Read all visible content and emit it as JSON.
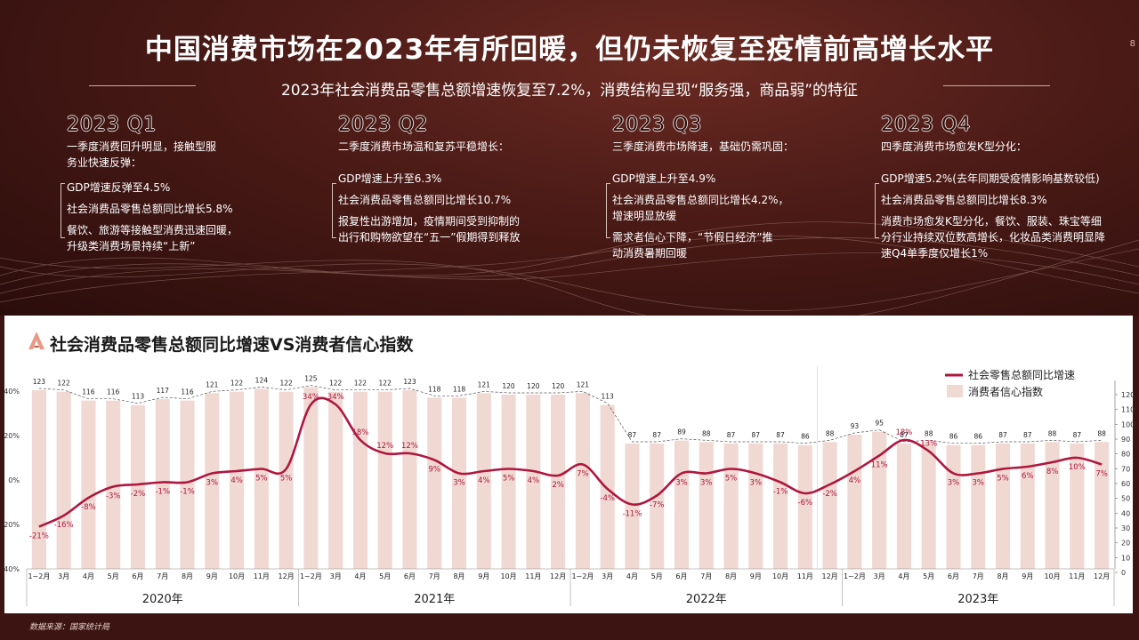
{
  "page": {
    "title": "中国消费市场在2023年有所回暖，但仍未恢复至疫情前高增长水平",
    "subtitle": "2023年社会消费品零售总额增速恢复至7.2%，消费结构呈现“服务强，商品弱”的特征",
    "page_number": "8",
    "source": "数据来源：国家统计局",
    "chart_title": "社会消费品零售总额同比增速VS消费者信心指数",
    "colors": {
      "line": "#b0163e",
      "bar": "#f0d9d2",
      "bg": "#3c1512"
    }
  },
  "quarters": [
    {
      "label": "2023 Q1",
      "lead": "一季度消费回升明显，接触型服务业快速反弹：",
      "points": [
        "GDP增速反弹至4.5%",
        "社会消费品零售总额同比增长5.8%",
        "餐饮、旅游等接触型消费迅速回暖，升级类消费场景持续“上新”"
      ]
    },
    {
      "label": "2023 Q2",
      "lead": "二季度消费市场温和复苏平稳增长：",
      "points": [
        "GDP增速上升至6.3%",
        "社会消费品零售总额同比增长10.7%",
        "报复性出游增加，疫情期间受到抑制的出行和购物欲望在“五一”假期得到释放"
      ]
    },
    {
      "label": "2023 Q3",
      "lead": "三季度消费市场降速，基础仍需巩固：",
      "points": [
        "GDP增速上升至4.9%",
        "社会消费品零售总额同比增长4.2%，增速明显放缓",
        "需求者信心下降，“节假日经济”推动消费暑期回暖"
      ]
    },
    {
      "label": "2023 Q4",
      "lead": "四季度消费市场愈发K型分化：",
      "points": [
        "GDP增速5.2%(去年同期受疫情影响基数较低)",
        "社会消费品零售总额同比增长8.3%",
        "消费市场愈发K型分化，餐饮、服装、珠宝等细分行业持续双位数高增长，化妆品类消费明显降速Q4单季度仅增长1%"
      ]
    }
  ],
  "chart_data": {
    "type": "bar+line",
    "categories": [
      "1~2月",
      "3月",
      "4月",
      "5月",
      "6月",
      "7月",
      "8月",
      "9月",
      "10月",
      "11月",
      "12月",
      "1~2月",
      "3月",
      "4月",
      "5月",
      "6月",
      "7月",
      "8月",
      "9月",
      "10月",
      "11月",
      "12月",
      "1~2月",
      "3月",
      "4月",
      "5月",
      "6月",
      "7月",
      "8月",
      "9月",
      "10月",
      "11月",
      "12月",
      "1~2月",
      "3月",
      "4月",
      "5月",
      "6月",
      "7月",
      "8月",
      "9月",
      "10月",
      "11月",
      "12月"
    ],
    "year_groups": [
      {
        "label": "2020年",
        "start": 0,
        "end": 10
      },
      {
        "label": "2021年",
        "start": 11,
        "end": 21
      },
      {
        "label": "2022年",
        "start": 22,
        "end": 32
      },
      {
        "label": "2023年",
        "start": 33,
        "end": 43
      }
    ],
    "series": [
      {
        "name": "社会零售总额同比增速",
        "type": "line",
        "values": [
          -21,
          -16,
          -8,
          -3,
          -2,
          -1,
          -1,
          3,
          4,
          5,
          5,
          34,
          34,
          18,
          12,
          12,
          9,
          3,
          4,
          5,
          4,
          2,
          7,
          -4,
          -11,
          -7,
          3,
          3,
          5,
          3,
          -1,
          -6,
          -2,
          4,
          11,
          18,
          13,
          3,
          3,
          5,
          6,
          8,
          10,
          7
        ],
        "labels": [
          "-21%",
          "-16%",
          "-8%",
          "-3%",
          "-2%",
          "-1%",
          "-1%",
          "3%",
          "4%",
          "5%",
          "5%",
          "34%",
          "34%",
          "18%",
          "12%",
          "12%",
          "9%",
          "3%",
          "4%",
          "5%",
          "4%",
          "2%",
          "7%",
          "-4%",
          "-11%",
          "-7%",
          "3%",
          "3%",
          "5%",
          "3%",
          "-1%",
          "-6%",
          "-2%",
          "4%",
          "11%",
          "18%",
          "13%",
          "3%",
          "3%",
          "5%",
          "6%",
          "8%",
          "10%",
          "7%"
        ]
      },
      {
        "name": "消费者信心指数",
        "type": "bar",
        "values": [
          123,
          122,
          116,
          116,
          113,
          117,
          116,
          121,
          122,
          124,
          122,
          125,
          122,
          122,
          122,
          123,
          118,
          118,
          121,
          120,
          120,
          120,
          121,
          113,
          87,
          87,
          89,
          88,
          87,
          87,
          87,
          86,
          88,
          93,
          95,
          87,
          88,
          86,
          86,
          87,
          87,
          88,
          87,
          88
        ]
      }
    ],
    "y_left": {
      "min": -40,
      "max": 40,
      "ticks": [
        "-40%",
        "-20%",
        "0%",
        "20%",
        "40%"
      ]
    },
    "y_right": {
      "min": 0,
      "max": 120,
      "ticks": [
        "0",
        "10",
        "20",
        "30",
        "40",
        "50",
        "60",
        "70",
        "80",
        "90",
        "100",
        "110",
        "120"
      ]
    },
    "legend": "top-right"
  }
}
